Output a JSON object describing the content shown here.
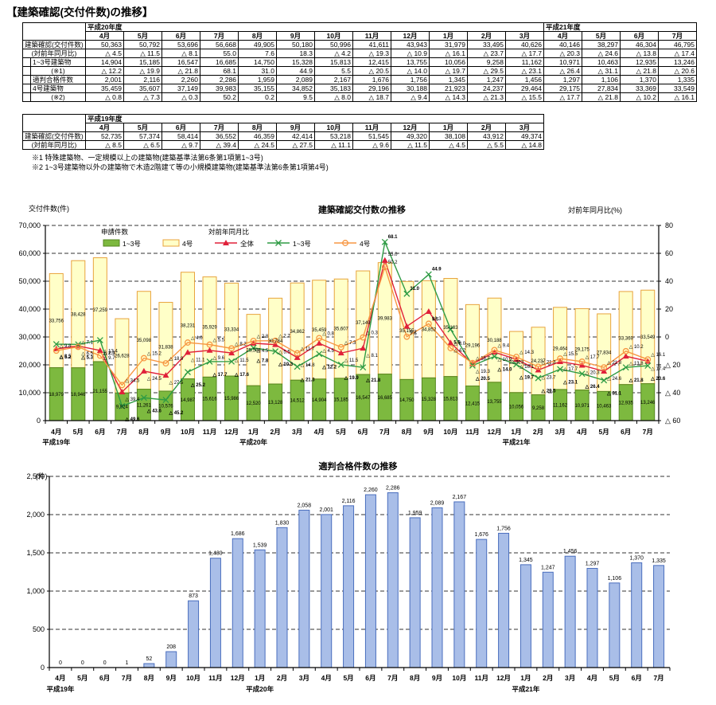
{
  "page_title": "【建築確認(交付件数)の推移】",
  "notes": [
    "※1 特殊建築物、一定規模以上の建築物(建築基準法第6条第1項第1~3号)",
    "※2 1~3号建築物以外の建築物で木造2階建て等の小規模建築物(建築基準法第6条第1項第4号)"
  ],
  "table_h20": {
    "era_headers": [
      "平成20年度",
      "平成21年度"
    ],
    "months": [
      "4月",
      "5月",
      "6月",
      "7月",
      "8月",
      "9月",
      "10月",
      "11月",
      "12月",
      "1月",
      "2月",
      "3月",
      "4月",
      "5月",
      "6月",
      "7月"
    ],
    "rows": [
      {
        "label": "建築確認(交付件数)",
        "sublabel": "(対前年同月比)",
        "indent": false,
        "values": [
          50363,
          50792,
          53696,
          56668,
          49905,
          50180,
          50996,
          41611,
          43943,
          31979,
          33495,
          40626,
          40146,
          38297,
          46304,
          46795
        ],
        "ratios": [
          -4.5,
          -11.5,
          -8.1,
          55.0,
          7.6,
          18.3,
          -4.2,
          -19.3,
          -10.9,
          -16.1,
          -23.7,
          -17.7,
          -20.3,
          -24.6,
          -13.8,
          -17.4
        ]
      },
      {
        "label": "1~3号建築物",
        "sublabel": "(※1)",
        "indent": true,
        "values": [
          14904,
          15185,
          16547,
          16685,
          14750,
          15328,
          15813,
          12415,
          13755,
          10056,
          9258,
          11162,
          10971,
          10463,
          12935,
          13246
        ],
        "ratios": [
          -12.2,
          -19.9,
          -21.8,
          68.1,
          31.0,
          44.9,
          5.5,
          -20.5,
          -14.0,
          -19.7,
          -29.5,
          -23.1,
          -26.4,
          -31.1,
          -21.8,
          -20.6
        ]
      },
      {
        "label": "適判合格件数",
        "indent": true,
        "values": [
          2001,
          2116,
          2260,
          2286,
          1959,
          2089,
          2167,
          1676,
          1756,
          1345,
          1247,
          1456,
          1297,
          1106,
          1370,
          1335
        ]
      },
      {
        "label": "4号建築物",
        "sublabel": "(※2)",
        "indent": true,
        "values": [
          35459,
          35607,
          37149,
          39983,
          35155,
          34852,
          35183,
          29196,
          30188,
          21923,
          24237,
          29464,
          29175,
          27834,
          33369,
          33549
        ],
        "ratios": [
          -0.8,
          -7.3,
          -0.3,
          50.2,
          0.2,
          9.5,
          -8.0,
          -18.7,
          -9.4,
          -14.3,
          -21.3,
          -15.5,
          -17.7,
          -21.8,
          -10.2,
          -16.1
        ]
      }
    ]
  },
  "table_h19": {
    "era_header": "平成19年度",
    "months": [
      "4月",
      "5月",
      "6月",
      "7月",
      "8月",
      "9月",
      "10月",
      "11月",
      "12月",
      "1月",
      "2月",
      "3月"
    ],
    "row_label": "建築確認(交付件数)",
    "row_sublabel": "(対前年同月比)",
    "values": [
      52735,
      57374,
      58414,
      36552,
      46359,
      42414,
      53218,
      51545,
      49320,
      38108,
      43912,
      49374
    ],
    "ratios": [
      -8.5,
      -6.5,
      -9.7,
      -39.4,
      -24.5,
      -27.5,
      -11.1,
      -9.6,
      -11.5,
      -4.5,
      -5.5,
      -14.8
    ]
  },
  "chart_data": [
    {
      "type": "bar",
      "subtype": "stacked-bars-with-ratio-lines",
      "title": "建築確認交付数の推移",
      "left_axis_title": "交付件数(件)",
      "right_axis_title": "対前年同月比(%)",
      "left_ylim": [
        0,
        70000
      ],
      "left_tick_step": 10000,
      "right_ylim": [
        -60,
        80
      ],
      "right_tick_step": 20,
      "grid": "dashed-horizontal",
      "legend": {
        "bars_header": "申請件数",
        "lines_header": "対前年同月比"
      },
      "categories": [
        "4月",
        "5月",
        "6月",
        "7月",
        "8月",
        "9月",
        "10月",
        "11月",
        "12月",
        "1月",
        "2月",
        "3月",
        "4月",
        "5月",
        "6月",
        "7月",
        "8月",
        "9月",
        "10月",
        "11月",
        "12月",
        "1月",
        "2月",
        "3月",
        "4月",
        "5月",
        "6月",
        "7月"
      ],
      "year_labels": [
        {
          "index": 0,
          "label": "平成19年"
        },
        {
          "index": 9,
          "label": "平成20年"
        },
        {
          "index": 21,
          "label": "平成21年"
        }
      ],
      "bar_series": [
        {
          "name": "1~3号",
          "color": "#7DB93F",
          "border": "#55861F",
          "values": [
            18979,
            18946,
            21155,
            9924,
            11261,
            10576,
            14987,
            15616,
            15986,
            12520,
            13128,
            14512,
            14904,
            15185,
            16547,
            16685,
            14750,
            15328,
            15813,
            12415,
            13755,
            10056,
            9258,
            11162,
            10971,
            10463,
            12935,
            13246
          ]
        },
        {
          "name": "4号",
          "color": "#FFFFC8",
          "border": "#E8A33D",
          "values": [
            33756,
            38428,
            37259,
            26628,
            35098,
            31838,
            38231,
            35929,
            33334,
            25588,
            30784,
            34862,
            35459,
            35607,
            37149,
            39983,
            35155,
            34852,
            35183,
            29196,
            30188,
            21923,
            24237,
            29464,
            29175,
            27834,
            33369,
            33549
          ]
        }
      ],
      "line_series": [
        {
          "name": "全体",
          "color": "#E0213A",
          "marker": "triangle",
          "values": [
            -8.5,
            -6.5,
            -9.7,
            -39.4,
            -24.5,
            -27.5,
            -11.1,
            -9.6,
            -11.5,
            -4.5,
            -5.5,
            -14.8,
            -4.5,
            -11.5,
            -8.1,
            55.0,
            7.6,
            18.3,
            -4.2,
            -19.3,
            -10.9,
            -16.1,
            -23.7,
            -17.7,
            -20.3,
            -24.6,
            -13.8,
            -17.4
          ]
        },
        {
          "name": "1~3号",
          "color": "#2E9B44",
          "marker": "x",
          "values": [
            -5.2,
            -5.3,
            -2.3,
            -49.6,
            -43.6,
            -45.2,
            -25.2,
            -17.7,
            -17.6,
            -7.8,
            -10.3,
            -21.3,
            -12.2,
            -19.9,
            -21.8,
            68.1,
            31.0,
            44.9,
            5.5,
            -20.5,
            -14.0,
            -19.7,
            -29.5,
            -23.1,
            -26.4,
            -31.1,
            -21.8,
            -20.6
          ]
        },
        {
          "name": "4号",
          "color": "#F79743",
          "marker": "circle",
          "values": [
            -9.8,
            -7.1,
            -13.4,
            -34.5,
            -15.2,
            -18.9,
            -4.0,
            -5.5,
            -8.2,
            -2.8,
            -2.7,
            -11.7,
            -0.8,
            -7.3,
            -0.3,
            50.2,
            0.2,
            9.5,
            -8.0,
            -18.7,
            -9.4,
            -14.3,
            -21.3,
            -15.5,
            -17.7,
            -21.8,
            -10.2,
            -16.1
          ]
        }
      ]
    },
    {
      "type": "bar",
      "title": "適判合格件数の推移",
      "ylabel": "(件)",
      "ylim": [
        0,
        2500
      ],
      "tick_step": 500,
      "grid": "dashed-horizontal",
      "bar_color": "#A9BEE8",
      "bar_border": "#4A6EBE",
      "categories": [
        "4月",
        "5月",
        "6月",
        "7月",
        "8月",
        "9月",
        "10月",
        "11月",
        "12月",
        "1月",
        "2月",
        "3月",
        "4月",
        "5月",
        "6月",
        "7月",
        "8月",
        "9月",
        "10月",
        "11月",
        "12月",
        "1月",
        "2月",
        "3月",
        "4月",
        "5月",
        "6月",
        "7月"
      ],
      "year_labels": [
        {
          "index": 0,
          "label": "平成19年"
        },
        {
          "index": 9,
          "label": "平成20年"
        },
        {
          "index": 21,
          "label": "平成21年"
        }
      ],
      "values": [
        0,
        0,
        0,
        1,
        52,
        208,
        873,
        1430,
        1686,
        1539,
        1830,
        2058,
        2001,
        2116,
        2260,
        2286,
        1959,
        2089,
        2167,
        1676,
        1756,
        1345,
        1247,
        1456,
        1297,
        1106,
        1370,
        1335
      ]
    }
  ]
}
